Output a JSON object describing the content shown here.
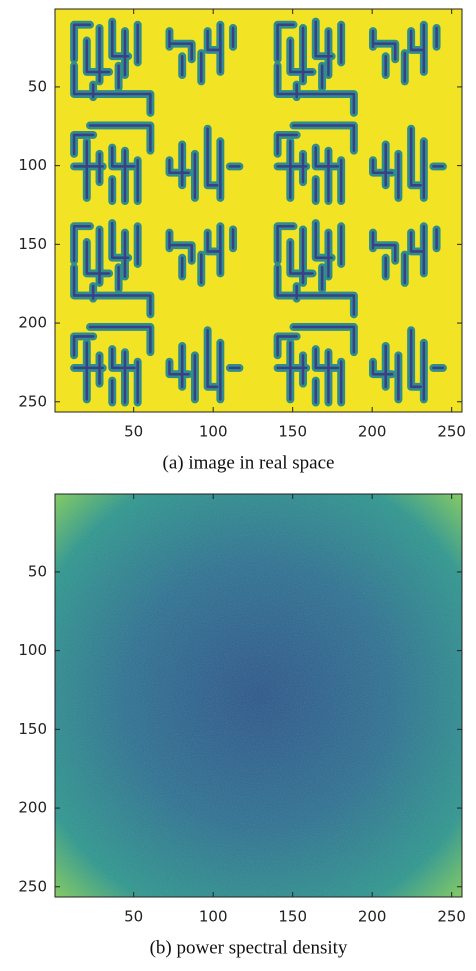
{
  "chart_data": [
    {
      "type": "image",
      "caption": "(a) image in real space",
      "palette": "circuit",
      "xlim": [
        0.5,
        256.5
      ],
      "ylim": [
        0.5,
        256.5
      ],
      "y_reversed": true,
      "xticks": [
        50,
        100,
        150,
        200,
        250
      ],
      "yticks": [
        50,
        100,
        150,
        200,
        250
      ]
    },
    {
      "type": "image",
      "caption": "(b) power spectral density",
      "palette": "spectrum",
      "xlim": [
        0.5,
        256.5
      ],
      "ylim": [
        0.5,
        256.5
      ],
      "y_reversed": true,
      "xticks": [
        50,
        100,
        150,
        200,
        250
      ],
      "yticks": [
        50,
        100,
        150,
        200,
        250
      ]
    }
  ]
}
